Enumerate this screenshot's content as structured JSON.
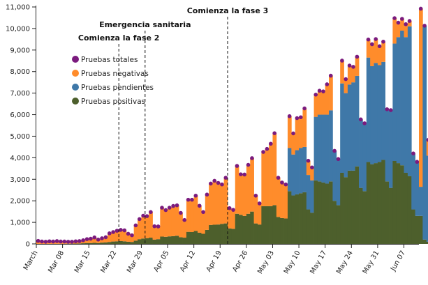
{
  "chart_data": {
    "type": "bar",
    "start_date": "2020-03-01",
    "end_date": "2020-06-10",
    "ylim": [
      0,
      11000
    ],
    "y_tick_values": [
      0,
      1000,
      2000,
      3000,
      4000,
      5000,
      6000,
      7000,
      8000,
      9000,
      10000,
      11000
    ],
    "y_tick_labels": [
      "0",
      "1,000",
      "2,000",
      "3,000",
      "4,000",
      "5,000",
      "6,000",
      "7,000",
      "8,000",
      "9,000",
      "10,000",
      "11,000"
    ],
    "x_tick_labels": [
      {
        "date": "2020-03-01",
        "label": "March"
      },
      {
        "date": "2020-03-08",
        "label": "Mar 08"
      },
      {
        "date": "2020-03-15",
        "label": "Mar 15"
      },
      {
        "date": "2020-03-22",
        "label": "Mar 22"
      },
      {
        "date": "2020-03-29",
        "label": "Mar 29"
      },
      {
        "date": "2020-04-05",
        "label": "Apr 05"
      },
      {
        "date": "2020-04-12",
        "label": "Apr 12"
      },
      {
        "date": "2020-04-19",
        "label": "Apr 19"
      },
      {
        "date": "2020-04-26",
        "label": "Apr 26"
      },
      {
        "date": "2020-05-03",
        "label": "May 03"
      },
      {
        "date": "2020-05-10",
        "label": "May 10"
      },
      {
        "date": "2020-05-17",
        "label": "May 17"
      },
      {
        "date": "2020-05-24",
        "label": "May 24"
      },
      {
        "date": "2020-05-31",
        "label": "May 31"
      },
      {
        "date": "2020-06-07",
        "label": "Jun 07"
      }
    ],
    "annotations": [
      {
        "date": "2020-03-23",
        "label": "Comienza la fase 2"
      },
      {
        "date": "2020-03-30",
        "label": "Emergencia sanitaria"
      },
      {
        "date": "2020-04-21",
        "label": "Comienza la fase 3"
      }
    ],
    "legend": [
      {
        "name": "Pruebas totales",
        "color": "#7b1b7e"
      },
      {
        "name": "Pruebas negativas",
        "color": "#ff8c2b"
      },
      {
        "name": "Pruebas pendientes",
        "color": "#3f78a8"
      },
      {
        "name": "Pruebas positivas",
        "color": "#4d5f2c"
      }
    ],
    "legend_position": "top-left",
    "totales": [
      140,
      110,
      100,
      120,
      110,
      130,
      110,
      110,
      100,
      100,
      120,
      130,
      170,
      220,
      240,
      300,
      200,
      260,
      310,
      490,
      550,
      610,
      650,
      630,
      470,
      400,
      860,
      1150,
      1310,
      1290,
      1480,
      820,
      810,
      1680,
      1570,
      1680,
      1760,
      1790,
      1440,
      1110,
      2050,
      2050,
      2240,
      1770,
      1480,
      2290,
      2800,
      2930,
      2830,
      2760,
      3070,
      1660,
      1580,
      3620,
      3230,
      3220,
      3670,
      3980,
      2240,
      1880,
      4270,
      4410,
      4650,
      5140,
      3070,
      2850,
      2760,
      5930,
      5130,
      5840,
      5880,
      6290,
      3860,
      3550,
      6930,
      7110,
      7080,
      7410,
      7810,
      4320,
      3940,
      8510,
      7650,
      8280,
      8220,
      8690,
      5780,
      5600,
      9490,
      9270,
      9510,
      9180,
      9390,
      6250,
      6210,
      10480,
      10270,
      10450,
      10200,
      10350,
      4200,
      3810,
      10920,
      10130,
      4830
    ],
    "pendientes": [
      0,
      0,
      0,
      0,
      0,
      0,
      0,
      0,
      0,
      0,
      0,
      0,
      0,
      0,
      0,
      0,
      0,
      0,
      0,
      0,
      0,
      0,
      0,
      0,
      0,
      0,
      0,
      0,
      0,
      0,
      0,
      0,
      0,
      0,
      0,
      0,
      0,
      0,
      0,
      0,
      0,
      0,
      0,
      0,
      0,
      0,
      0,
      0,
      0,
      0,
      0,
      0,
      0,
      0,
      0,
      0,
      0,
      0,
      0,
      0,
      0,
      0,
      0,
      0,
      0,
      0,
      0,
      2000,
      1900,
      2050,
      2100,
      2100,
      1600,
      1500,
      2950,
      3100,
      3150,
      3200,
      3300,
      2650,
      2400,
      4150,
      3900,
      4000,
      4100,
      4200,
      3500,
      3300,
      4850,
      4550,
      4650,
      4500,
      4550,
      3950,
      4050,
      5450,
      5850,
      6250,
      6300,
      6950,
      3900,
      3050,
      1350,
      10000,
      4000
    ],
    "positivas": [
      2,
      2,
      3,
      3,
      4,
      5,
      5,
      6,
      10,
      12,
      15,
      20,
      30,
      40,
      40,
      50,
      40,
      60,
      70,
      90,
      110,
      120,
      130,
      120,
      100,
      90,
      150,
      220,
      250,
      260,
      290,
      200,
      220,
      340,
      330,
      350,
      360,
      380,
      310,
      290,
      560,
      550,
      600,
      520,
      470,
      650,
      880,
      890,
      900,
      930,
      950,
      720,
      700,
      1400,
      1350,
      1300,
      1400,
      1500,
      950,
      900,
      1750,
      1750,
      1750,
      1800,
      1250,
      1200,
      1180,
      2450,
      2250,
      2300,
      2350,
      2400,
      1600,
      1450,
      2950,
      2900,
      2850,
      2800,
      2900,
      2000,
      1800,
      3300,
      3100,
      3400,
      3400,
      3600,
      2600,
      2450,
      3800,
      3700,
      3750,
      3800,
      3900,
      2900,
      2600,
      3850,
      3750,
      3650,
      3300,
      3150,
      1600,
      1300,
      1300,
      200,
      100
    ]
  }
}
